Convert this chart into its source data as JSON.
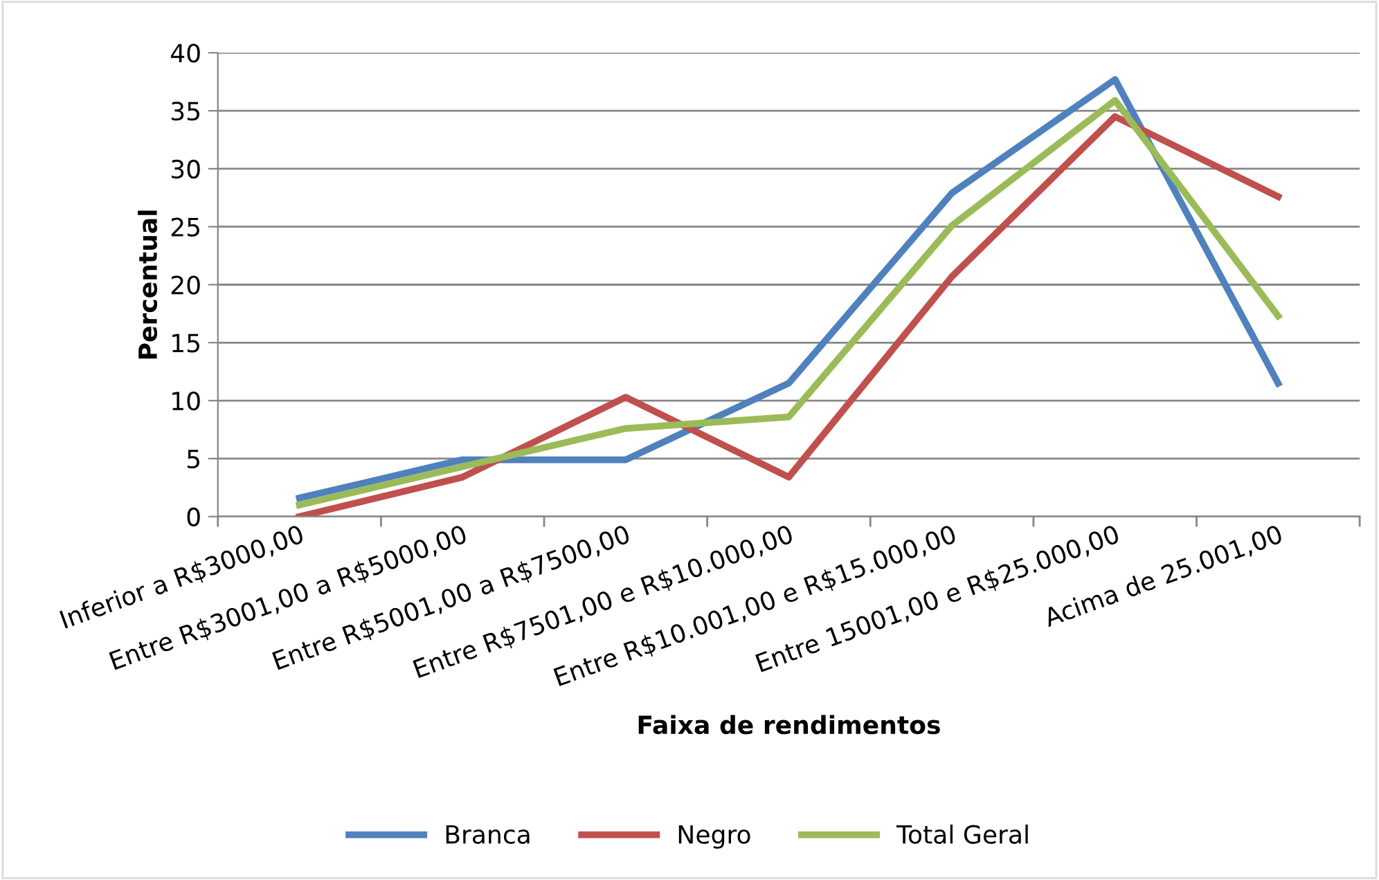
{
  "chart_data": {
    "type": "line",
    "xlabel": "Faixa de rendimentos",
    "ylabel": "Percentual",
    "categories": [
      "Inferior a R$3000,00",
      "Entre R$3001,00 a R$5000,00",
      "Entre R$5001,00 a R$7500,00",
      "Entre R$7501,00 e R$10.000,00",
      "Entre R$10.001,00 e R$15.000,00",
      "Entre 15001,00 e R$25.000,00",
      "Acima de 25.001,00"
    ],
    "series": [
      {
        "name": "Branca",
        "color": "#4f81bd",
        "values": [
          1.6,
          4.9,
          4.9,
          11.5,
          27.9,
          37.7,
          11.5
        ]
      },
      {
        "name": "Negro",
        "color": "#c0504d",
        "values": [
          0,
          3.4,
          10.3,
          3.4,
          20.7,
          34.5,
          27.6
        ]
      },
      {
        "name": "Total Geral",
        "color": "#9bbb59",
        "values": [
          1.0,
          4.3,
          7.6,
          8.6,
          25.1,
          35.9,
          17.3
        ]
      }
    ],
    "ylim": [
      0,
      40
    ],
    "yticks": [
      0,
      5,
      10,
      15,
      20,
      25,
      30,
      35,
      40
    ],
    "grid": "y",
    "legend": "bottom",
    "marker": "none",
    "line_style": "solid"
  }
}
